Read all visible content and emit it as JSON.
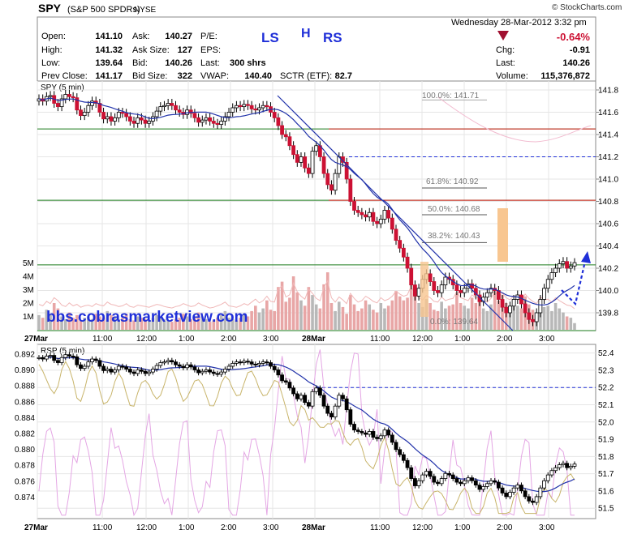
{
  "header": {
    "symbol": "SPY",
    "name": "(S&P 500 SPDRs)",
    "exchange": "NYSE",
    "copyright": "© StockCharts.com",
    "date": "Wednesday  28-Mar-2012  3:32 pm",
    "open_label": "Open:",
    "open": "141.10",
    "high_label": "High:",
    "high": "141.32",
    "low_label": "Low:",
    "low": "139.64",
    "prev_label": "Prev Close:",
    "prev": "141.17",
    "ask_label": "Ask:",
    "ask": "140.27",
    "asksize_label": "Ask Size:",
    "asksize": "127",
    "bid_label": "Bid:",
    "bid": "140.26",
    "bidsize_label": "Bid Size:",
    "bidsize": "322",
    "pe_label": "P/E:",
    "pe": "",
    "eps_label": "EPS:",
    "eps": "",
    "last_label": "Last:",
    "last": "300 shrs",
    "vwap_label": "VWAP:",
    "vwap": "140.40",
    "sctr_label": "SCTR (ETF):",
    "sctr": "82.7",
    "pct_change": "-0.64%",
    "chg_label": "Chg:",
    "chg": "-0.91",
    "last2_label": "Last:",
    "last2": "140.26",
    "volume_label": "Volume:",
    "volume": "115,376,872"
  },
  "annotations": {
    "ls": "LS",
    "h": "H",
    "rs": "RS",
    "watermark": "bbs.cobrasmarketview.com",
    "fib_100": "100.0%: 141.71",
    "fib_618": "61.8%: 140.92",
    "fib_50": "50.0%: 140.68",
    "fib_382": "38.2%: 140.43",
    "fib_0": "0.0%: 139.64"
  },
  "colors": {
    "up": "#2e9e2e",
    "down": "#cc1133",
    "ma": "#2233aa",
    "green_line": "#1a7a1a",
    "red_line": "#dd2222",
    "volume": "#e8a6a6",
    "rsi": "#e4a6e4",
    "olive": "#c8b46a"
  },
  "chart_data": [
    {
      "type": "candlestick",
      "title": "SPY (5 min)",
      "y_ticks": [
        "141.8",
        "141.6",
        "141.4",
        "141.2",
        "141.0",
        "140.8",
        "140.6",
        "140.4",
        "140.2",
        "140.0",
        "139.8"
      ],
      "ylim": [
        139.64,
        141.88
      ],
      "volume_ticks": [
        "5M",
        "4M",
        "3M",
        "2M",
        "1M"
      ],
      "x_ticks": [
        "27Mar",
        "11:00",
        "12:00",
        "1:00",
        "2:00",
        "3:00",
        "28Mar",
        "11:00",
        "12:00",
        "1:00",
        "2:00",
        "3:00"
      ],
      "horizontal_lines": [
        {
          "kind": "green",
          "value": 141.45
        },
        {
          "kind": "green",
          "value": 140.81
        },
        {
          "kind": "green",
          "value": 140.23
        },
        {
          "kind": "green",
          "value": 139.64
        },
        {
          "kind": "red",
          "value": 141.45
        },
        {
          "kind": "red",
          "value": 140.81
        },
        {
          "kind": "dashed",
          "value": 141.2
        }
      ],
      "close": [
        141.72,
        141.7,
        141.74,
        141.75,
        141.68,
        141.65,
        141.72,
        141.76,
        141.74,
        141.73,
        141.62,
        141.57,
        141.6,
        141.66,
        141.7,
        141.68,
        141.6,
        141.54,
        141.56,
        141.52,
        141.55,
        141.6,
        141.59,
        141.56,
        141.52,
        141.5,
        141.55,
        141.53,
        141.5,
        141.52,
        141.56,
        141.61,
        141.65,
        141.66,
        141.68,
        141.66,
        141.62,
        141.6,
        141.58,
        141.62,
        141.59,
        141.55,
        141.51,
        141.53,
        141.55,
        141.52,
        141.5,
        141.49,
        141.52,
        141.56,
        141.6,
        141.64,
        141.66,
        141.65,
        141.67,
        141.66,
        141.63,
        141.62,
        141.64,
        141.66,
        141.65,
        141.6,
        141.55,
        141.48,
        141.4,
        141.38,
        141.3,
        141.22,
        141.15,
        141.2,
        141.1,
        141.05,
        141.25,
        141.3,
        141.2,
        141.05,
        140.95,
        140.9,
        141.05,
        141.2,
        141.15,
        141.0,
        140.8,
        140.72,
        140.7,
        140.68,
        140.66,
        140.7,
        140.62,
        140.6,
        140.64,
        140.72,
        140.65,
        140.55,
        140.45,
        140.38,
        140.3,
        140.2,
        140.05,
        139.95,
        140.02,
        140.1,
        140.15,
        140.08,
        140.0,
        139.98,
        140.05,
        140.12,
        140.1,
        140.05,
        140.0,
        139.98,
        140.02,
        140.06,
        140.02,
        139.96,
        139.9,
        139.94,
        139.98,
        140.02,
        140.0,
        139.92,
        139.85,
        139.8,
        139.86,
        139.92,
        139.96,
        139.88,
        139.8,
        139.74,
        139.72,
        139.8,
        139.92,
        140.02,
        140.1,
        140.16,
        140.2,
        140.24,
        140.26,
        140.2,
        140.22,
        140.25
      ]
    },
    {
      "type": "line",
      "title": "RSP (5 min)",
      "y_ticks_left": [
        "0.892",
        "0.890",
        "0.888",
        "0.886",
        "0.884",
        "0.882",
        "0.880",
        "0.878",
        "0.876",
        "0.874"
      ],
      "y_ticks_right": [
        "52.4",
        "52.3",
        "52.2",
        "52.1",
        "52.0",
        "51.9",
        "51.8",
        "51.7",
        "51.6",
        "51.5"
      ],
      "ylim": [
        51.44,
        52.45
      ],
      "dashed_line": 52.2
    }
  ]
}
